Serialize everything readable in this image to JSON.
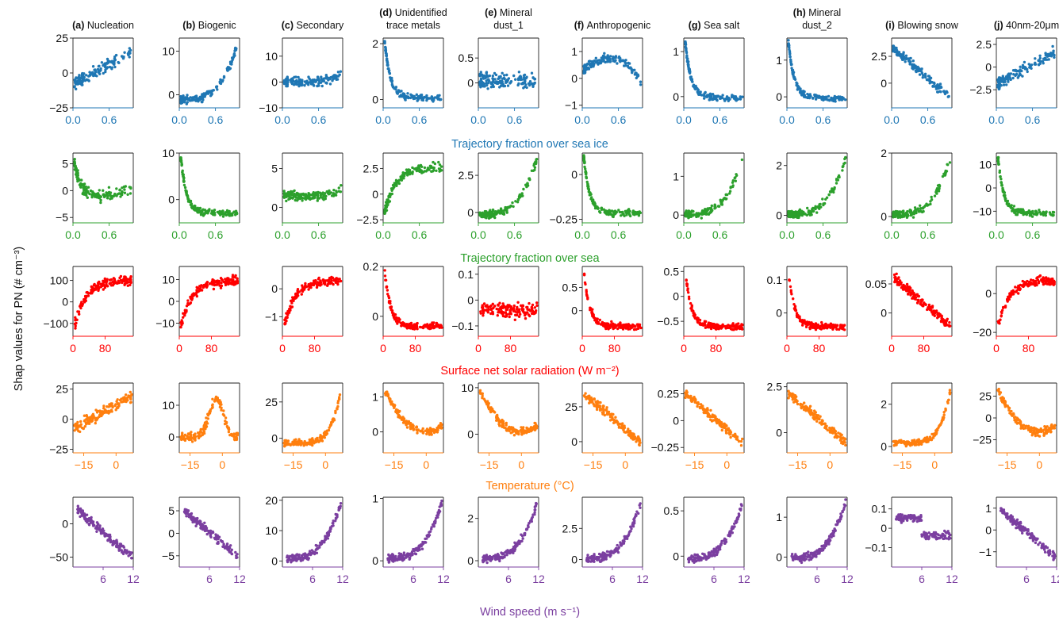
{
  "figure": {
    "ylabel": "Shap values for PN (# cm⁻³)"
  },
  "panels": [
    {
      "label": "(a)",
      "name": "Nucleation"
    },
    {
      "label": "(b)",
      "name": "Biogenic"
    },
    {
      "label": "(c)",
      "name": "Secondary"
    },
    {
      "label": "(d)",
      "name": "Unidentified trace metals"
    },
    {
      "label": "(e)",
      "name": "Mineral dust_1"
    },
    {
      "label": "(f)",
      "name": "Anthropogenic"
    },
    {
      "label": "(g)",
      "name": "Sea salt"
    },
    {
      "label": "(h)",
      "name": "Mineral dust_2"
    },
    {
      "label": "(i)",
      "name": "Blowing snow"
    },
    {
      "label": "(j)",
      "name": "40nm-20μm"
    }
  ],
  "features": [
    {
      "xlabel": "Trajectory fraction over sea ice",
      "color": "#1f77b4",
      "xticks": [
        "0.0",
        "0.6"
      ],
      "xlim": [
        0,
        1
      ]
    },
    {
      "xlabel": "Trajectory fraction over sea",
      "color": "#2ca02c",
      "xticks": [
        "0.0",
        "0.6"
      ],
      "xlim": [
        0,
        1
      ]
    },
    {
      "xlabel": "Surface net solar radiation (W m⁻²)",
      "color": "#ff0000",
      "xticks": [
        "0",
        "80"
      ],
      "xlim": [
        0,
        150
      ]
    },
    {
      "xlabel": "Temperature (°C)",
      "color": "#ff7f0e",
      "xticks": [
        "−15",
        "0"
      ],
      "xlim": [
        -20,
        8
      ]
    },
    {
      "xlabel": "Wind speed (m s⁻¹)",
      "color": "#7b3fa0",
      "xticks": [
        "6",
        "12"
      ],
      "xlim": [
        0,
        12
      ]
    }
  ],
  "chart_data": {
    "type": "scatter",
    "grid": false,
    "rows": [
      {
        "feature": "Trajectory fraction over sea ice",
        "ylims": [
          [
            -25,
            25
          ],
          [
            -3,
            13
          ],
          [
            -10,
            17
          ],
          [
            -0.3,
            2.2
          ],
          [
            -0.5,
            0.9
          ],
          [
            -1.1,
            1.5
          ],
          [
            -0.25,
            1.3
          ],
          [
            -0.3,
            1.6
          ],
          [
            -2.3,
            4.2
          ],
          [
            -4.5,
            3.2
          ]
        ],
        "yticks": [
          [
            25,
            0,
            -25
          ],
          [
            10,
            0
          ],
          [
            10,
            0,
            -10
          ],
          [
            2,
            0
          ],
          [
            0.5,
            0.0
          ],
          [
            1,
            0,
            -1
          ],
          [
            1,
            0
          ],
          [
            1,
            0
          ],
          [
            2.5,
            0.0
          ],
          [
            2.5,
            0.0,
            -2.5
          ]
        ],
        "shapes": [
          "rise",
          "expo",
          "flat-up",
          "decay",
          "flat",
          "hump",
          "decay",
          "decay",
          "fall",
          "rise"
        ]
      },
      {
        "feature": "Trajectory fraction over sea",
        "ylims": [
          [
            -6,
            7
          ],
          [
            -5,
            10
          ],
          [
            -2,
            7
          ],
          [
            -2.8,
            4
          ],
          [
            -0.7,
            4
          ],
          [
            -0.27,
            0.12
          ],
          [
            -0.2,
            1.6
          ],
          [
            -0.3,
            2.5
          ],
          [
            -0.2,
            2
          ],
          [
            -15,
            15
          ]
        ],
        "yticks": [
          [
            5,
            0,
            -5
          ],
          [
            10,
            0
          ],
          [
            5,
            0
          ],
          [
            2.5,
            0.0,
            -2.5
          ],
          [
            2.5,
            0.0
          ],
          [
            0.0,
            -0.25
          ],
          [
            1,
            0
          ],
          [
            2,
            0
          ],
          [
            2,
            0
          ],
          [
            10,
            0,
            -10
          ]
        ],
        "shapes": [
          "decay-u",
          "decay",
          "flat-up",
          "sat",
          "expo",
          "decay",
          "expo",
          "expo",
          "expo",
          "decay"
        ]
      },
      {
        "feature": "Surface net solar radiation (W m⁻²)",
        "ylims": [
          [
            -160,
            165
          ],
          [
            -16,
            16
          ],
          [
            -1.7,
            0.8
          ],
          [
            -0.08,
            0.2
          ],
          [
            -0.14,
            0.13
          ],
          [
            -0.55,
            0.95
          ],
          [
            -0.8,
            0.6
          ],
          [
            -0.07,
            0.14
          ],
          [
            -0.04,
            0.08
          ],
          [
            -22,
            14
          ]
        ],
        "yticks": [
          [
            100,
            0,
            -100
          ],
          [
            10,
            0,
            -10
          ],
          [
            0,
            -1
          ],
          [
            0.2,
            0.0
          ],
          [
            0.1,
            0.0,
            -0.1
          ],
          [
            0.5,
            0.0
          ],
          [
            0.5,
            0.0,
            -0.5
          ],
          [
            0.1,
            0.0
          ],
          [
            0.05,
            0.0
          ],
          [
            0,
            -20
          ]
        ],
        "shapes": [
          "sat",
          "sat",
          "sat",
          "decay",
          "flat",
          "decay",
          "decay",
          "decay",
          "fall",
          "sat"
        ]
      },
      {
        "feature": "Temperature (°C)",
        "ylims": [
          [
            -28,
            30
          ],
          [
            -5,
            17
          ],
          [
            -10,
            38
          ],
          [
            -0.6,
            1.4
          ],
          [
            -4,
            11
          ],
          [
            -8,
            42
          ],
          [
            -0.3,
            0.35
          ],
          [
            -1.1,
            2.7
          ],
          [
            -0.3,
            3
          ],
          [
            -40,
            40
          ]
        ],
        "yticks": [
          [
            25,
            0,
            -25
          ],
          [
            10,
            0
          ],
          [
            25,
            0
          ],
          [
            1,
            0
          ],
          [
            10,
            0
          ],
          [
            25,
            0
          ],
          [
            0.25,
            0.0,
            -0.25
          ],
          [
            2.5,
            0.0
          ],
          [
            2,
            0
          ],
          [
            25,
            0,
            -25
          ]
        ],
        "shapes": [
          "rise",
          "peak",
          "late-up",
          "valley",
          "valley",
          "fall",
          "fall",
          "fall",
          "late-up",
          "valley"
        ]
      },
      {
        "feature": "Wind speed (m s⁻¹)",
        "ylims": [
          [
            -65,
            40
          ],
          [
            -7.5,
            8
          ],
          [
            -2,
            21
          ],
          [
            -0.1,
            1.02
          ],
          [
            -0.3,
            3
          ],
          [
            -0.6,
            5
          ],
          [
            -0.12,
            0.65
          ],
          [
            -0.25,
            1.5
          ],
          [
            -0.2,
            0.16
          ],
          [
            -1.7,
            1.5
          ]
        ],
        "yticks": [
          [
            0,
            -50
          ],
          [
            5,
            0,
            -5
          ],
          [
            20,
            10,
            0
          ],
          [
            1,
            0
          ],
          [
            2,
            0
          ],
          [
            2.5,
            0.0
          ],
          [
            0.5,
            0.0
          ],
          [
            1,
            0
          ],
          [
            0.1,
            0.0,
            -0.1
          ],
          [
            1,
            0,
            -1
          ]
        ],
        "shapes": [
          "fall",
          "fall",
          "expo",
          "expo",
          "expo",
          "expo",
          "expo",
          "expo",
          "step",
          "fall"
        ]
      }
    ]
  }
}
